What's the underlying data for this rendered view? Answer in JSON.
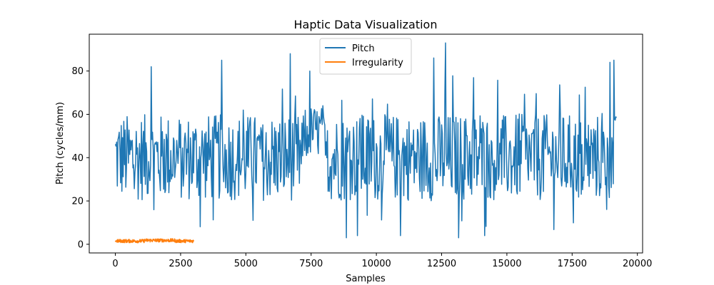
{
  "chart_data": {
    "type": "line",
    "title": "Haptic Data Visualization",
    "xlabel": "Samples",
    "ylabel": "Pitch (cycles/mm)",
    "xlim": [
      -1000,
      20200
    ],
    "ylim": [
      -4,
      97
    ],
    "xticks": [
      0,
      2500,
      5000,
      7500,
      10000,
      12500,
      15000,
      17500,
      20000
    ],
    "yticks": [
      0,
      20,
      40,
      60,
      80
    ],
    "grid": false,
    "legend_position": "top-center",
    "series": [
      {
        "name": "Pitch",
        "color": "#1f77b4",
        "x_range": [
          0,
          19200
        ],
        "samples_per_point": 25,
        "pattern": "noisy oscillation around ~40 with range roughly 3 to 93",
        "spikes": [
          {
            "x": 1380,
            "y": 82
          },
          {
            "x": 4080,
            "y": 85
          },
          {
            "x": 6700,
            "y": 88
          },
          {
            "x": 8850,
            "y": 3
          },
          {
            "x": 12200,
            "y": 86
          },
          {
            "x": 12650,
            "y": 93
          },
          {
            "x": 13150,
            "y": 3
          },
          {
            "x": 18950,
            "y": 84
          },
          {
            "x": 19100,
            "y": 85
          }
        ]
      },
      {
        "name": "Irregularity",
        "color": "#ff7f0e",
        "x_range": [
          0,
          3000
        ],
        "level": 1.5,
        "spread": [
          0.5,
          3
        ]
      }
    ]
  }
}
